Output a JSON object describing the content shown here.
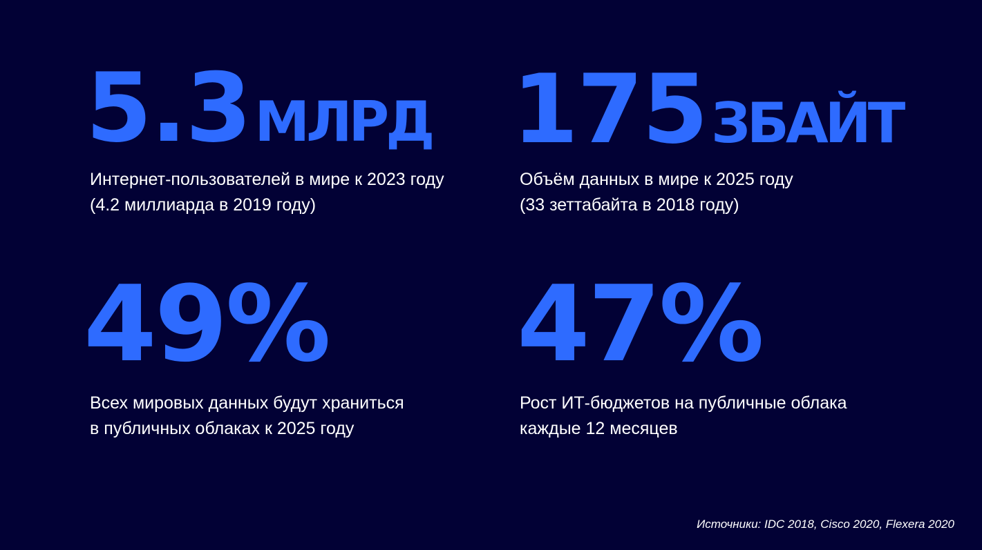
{
  "stats": [
    {
      "value": "5.3",
      "unit": "МЛРД",
      "line1": "Интернет-пользователей в мире к 2023 году",
      "line2": "(4.2 миллиарда в 2019 году)"
    },
    {
      "value": "175",
      "unit": "ЗБАЙТ",
      "line1": "Объём данных в мире к 2025 году",
      "line2": "(33 зеттабайта в 2018 году)"
    },
    {
      "value": "49%",
      "line1": "Всех мировых данных будут храниться",
      "line2": "в публичных облаках к 2025 году"
    },
    {
      "value": "47%",
      "line1": "Рост ИТ-бюджетов на публичные облака",
      "line2": "каждые 12 месяцев"
    }
  ],
  "sources": "Источники: IDC 2018, Cisco 2020, Flexera 2020",
  "colors": {
    "background": "#020135",
    "accent": "#2e6bff",
    "text": "#ffffff"
  }
}
